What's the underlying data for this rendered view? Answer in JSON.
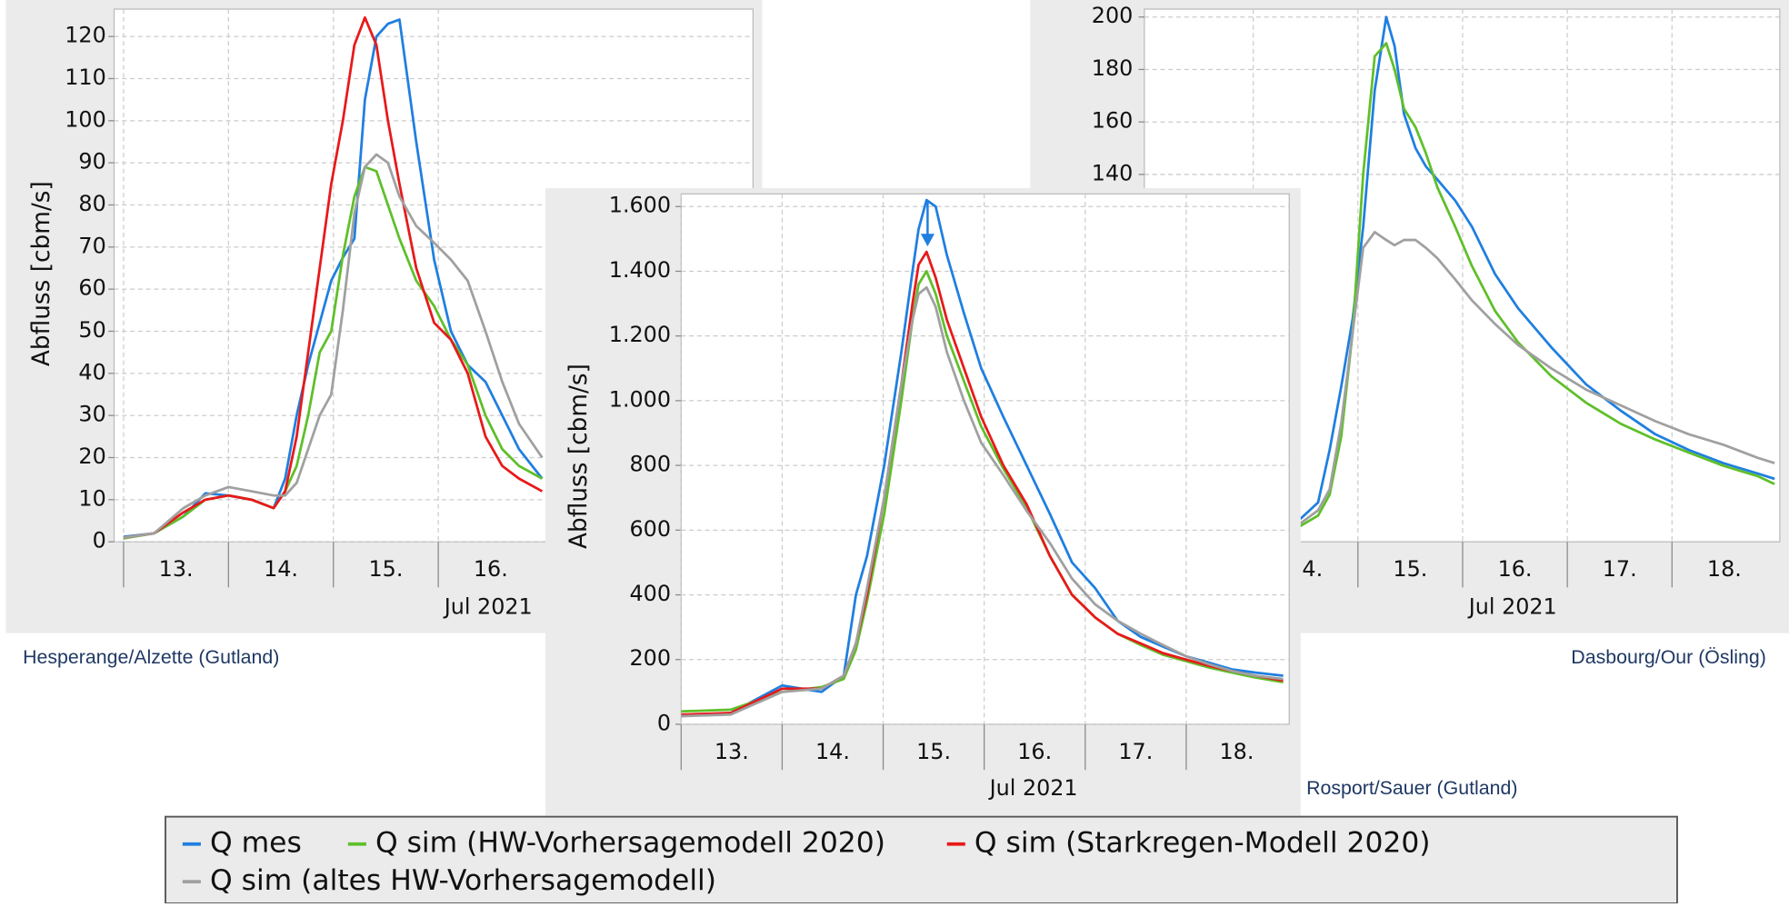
{
  "chart_data": [
    {
      "type": "line",
      "title": "Hesperange/Alzette (Gutland)",
      "xlabel": "Jul 2021",
      "ylabel": "Abfluss [cbm/s]",
      "x": [
        13.0,
        13.29,
        13.57,
        13.78,
        14.0,
        14.22,
        14.43,
        14.54,
        14.65,
        14.76,
        14.87,
        14.98,
        15.09,
        15.2,
        15.3,
        15.41,
        15.52,
        15.63,
        15.79,
        15.96,
        16.12,
        16.28,
        16.45,
        16.61,
        16.77,
        16.99
      ],
      "xlim": [
        12.91,
        19.0
      ],
      "xticks": [
        {
          "value": 13,
          "label": "13."
        },
        {
          "value": 14,
          "label": "14."
        },
        {
          "value": 15,
          "label": "15."
        },
        {
          "value": 16,
          "label": "16."
        }
      ],
      "ylim": [
        0,
        126.5
      ],
      "yticks": [
        0,
        10,
        20,
        30,
        40,
        50,
        60,
        70,
        80,
        90,
        100,
        110,
        120
      ],
      "grid": true,
      "series": [
        {
          "name": "Q mes",
          "color": "#1f7fe0",
          "values": [
            1.2,
            2,
            6,
            11.5,
            11,
            10,
            8,
            15,
            30,
            42,
            52,
            62,
            67.5,
            72,
            105,
            120,
            123,
            124,
            95,
            67,
            50,
            42,
            38,
            30,
            22,
            15
          ]
        },
        {
          "name": "Q sim (HW-Vorhersagemodell 2020)",
          "color": "#5fbf2a",
          "values": [
            0.8,
            2,
            6,
            10,
            11,
            10,
            8,
            12,
            18,
            30,
            45,
            50,
            68,
            82,
            89,
            88,
            80,
            72,
            62,
            56,
            48,
            42,
            30,
            22,
            18,
            15
          ]
        },
        {
          "name": "Q sim (Starkregen-Modell 2020)",
          "color": "#e8191a",
          "values": [
            1,
            2,
            7,
            10,
            11,
            10,
            8,
            12,
            25,
            45,
            65,
            85,
            100,
            118,
            124.5,
            118,
            100,
            85,
            65,
            52,
            48,
            40,
            25,
            18,
            15,
            12
          ]
        },
        {
          "name": "Q sim (altes HW-Vorhersagemodell)",
          "color": "#a0a0a0",
          "values": [
            1,
            2,
            8,
            11,
            13,
            12,
            11,
            11,
            14,
            22,
            30,
            35,
            55,
            78,
            89,
            92,
            90,
            82,
            75,
            71,
            67,
            62,
            50,
            38,
            28,
            20
          ]
        }
      ]
    },
    {
      "type": "line",
      "title": "Dasbourg/Our (Ösling)",
      "xlabel": "Jul 2021",
      "x": [
        14.45,
        14.62,
        14.73,
        14.84,
        14.95,
        15.05,
        15.16,
        15.27,
        15.35,
        15.44,
        15.55,
        15.65,
        15.76,
        15.93,
        16.09,
        16.31,
        16.53,
        16.85,
        17.18,
        17.51,
        17.84,
        18.16,
        18.49,
        18.82,
        18.98
      ],
      "xlim": [
        12.96,
        19.03
      ],
      "xticks": [
        {
          "value": 14,
          "label": "14."
        },
        {
          "value": 15,
          "label": "15."
        },
        {
          "value": 16,
          "label": "16."
        },
        {
          "value": 17,
          "label": "17."
        },
        {
          "value": 18,
          "label": "18."
        }
      ],
      "ylim": [
        0,
        203
      ],
      "yticks": [
        140,
        160,
        180,
        200
      ],
      "grid": true,
      "series": [
        {
          "color": "#1f7fe0",
          "values": [
            8.7,
            15,
            35,
            59,
            85,
            120,
            172,
            200,
            189,
            163,
            150,
            143,
            138,
            130,
            120,
            102,
            89,
            74,
            60,
            50,
            41,
            35,
            30,
            26,
            24
          ]
        },
        {
          "color": "#5fbf2a",
          "values": [
            6,
            10,
            18,
            40,
            80,
            140,
            185,
            190,
            180,
            165,
            158,
            148,
            135,
            120,
            105,
            88,
            76,
            63,
            53,
            45,
            39,
            34,
            29,
            25,
            22
          ]
        },
        {
          "color": "#a0a0a0",
          "values": [
            7,
            12,
            20,
            45,
            80,
            112,
            118,
            115,
            113,
            115,
            115,
            112,
            108,
            100,
            92,
            83,
            75,
            66,
            58,
            52,
            46,
            41,
            37,
            32,
            30
          ]
        }
      ]
    },
    {
      "type": "line",
      "title": "Rosport/Sauer (Gutland)",
      "xlabel": "Jul 2021",
      "ylabel": "Abfluss [cbm/s]",
      "x": [
        13.0,
        13.49,
        14.0,
        14.39,
        14.61,
        14.73,
        14.84,
        15.01,
        15.18,
        15.29,
        15.35,
        15.43,
        15.52,
        15.63,
        15.8,
        15.97,
        16.19,
        16.42,
        16.65,
        16.87,
        17.1,
        17.32,
        17.55,
        17.77,
        18.0,
        18.23,
        18.45,
        18.68,
        18.96
      ],
      "xlim": [
        13.0,
        19.02
      ],
      "xticks": [
        {
          "value": 13,
          "label": "13."
        },
        {
          "value": 14,
          "label": "14."
        },
        {
          "value": 15,
          "label": "15."
        },
        {
          "value": 16,
          "label": "16."
        },
        {
          "value": 17,
          "label": "17."
        },
        {
          "value": 18,
          "label": "18."
        }
      ],
      "ylim": [
        0,
        1639
      ],
      "yticks": [
        0,
        200,
        400,
        600,
        800,
        {
          "value": 1000,
          "label": "1.000"
        },
        {
          "value": 1200,
          "label": "1.200"
        },
        {
          "value": 1400,
          "label": "1.400"
        },
        {
          "value": 1600,
          "label": "1.600"
        }
      ],
      "grid": true,
      "series": [
        {
          "color": "#1f7fe0",
          "values": [
            25,
            35,
            120,
            100,
            150,
            400,
            520,
            800,
            1150,
            1400,
            1530,
            1620,
            1600,
            1450,
            1270,
            1100,
            950,
            800,
            650,
            500,
            420,
            320,
            270,
            240,
            210,
            190,
            170,
            160,
            150
          ]
        },
        {
          "color": "#5fbf2a",
          "values": [
            40,
            45,
            100,
            115,
            140,
            230,
            380,
            650,
            1000,
            1250,
            1360,
            1400,
            1330,
            1200,
            1060,
            920,
            790,
            670,
            520,
            400,
            330,
            280,
            245,
            215,
            195,
            175,
            160,
            145,
            130
          ]
        },
        {
          "color": "#e8191a",
          "values": [
            30,
            35,
            110,
            110,
            150,
            250,
            400,
            700,
            1050,
            1300,
            1420,
            1460,
            1380,
            1250,
            1100,
            950,
            800,
            680,
            520,
            400,
            330,
            280,
            250,
            220,
            200,
            180,
            165,
            150,
            135
          ]
        },
        {
          "color": "#a0a0a0",
          "values": [
            25,
            30,
            100,
            110,
            150,
            250,
            420,
            700,
            1050,
            1250,
            1330,
            1350,
            1290,
            1150,
            1000,
            870,
            770,
            660,
            560,
            450,
            370,
            320,
            280,
            245,
            210,
            185,
            165,
            150,
            140
          ]
        }
      ]
    }
  ]
}
